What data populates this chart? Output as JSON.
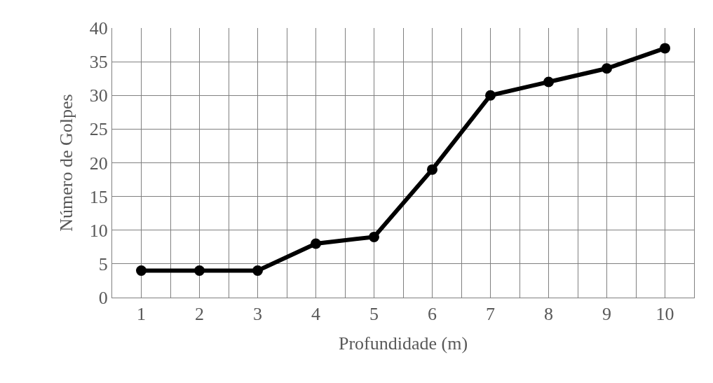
{
  "chart_data": {
    "type": "line",
    "xlabel": "Profundidade (m)",
    "ylabel": "Número de Golpes",
    "x": [
      1,
      2,
      3,
      4,
      5,
      6,
      7,
      8,
      9,
      10
    ],
    "series": [
      {
        "color": "#000000",
        "values": [
          4,
          4,
          4,
          8,
          9,
          19,
          30,
          32,
          34,
          37
        ]
      }
    ],
    "xlim": [
      0.5,
      10.5
    ],
    "xticks": [
      {
        "value": 0.5,
        "label": null
      },
      1,
      {
        "value": 1.5,
        "label": null
      },
      2,
      {
        "value": 2.5,
        "label": null
      },
      3,
      {
        "value": 3.5,
        "label": null
      },
      4,
      {
        "value": 4.5,
        "label": null
      },
      5,
      {
        "value": 5.5,
        "label": null
      },
      6,
      {
        "value": 6.5,
        "label": null
      },
      7,
      {
        "value": 7.5,
        "label": null
      },
      8,
      {
        "value": 8.5,
        "label": null
      },
      9,
      {
        "value": 9.5,
        "label": null
      },
      10,
      {
        "value": 10.5,
        "label": null
      }
    ],
    "ylim": [
      0,
      40
    ],
    "yticks": [
      0,
      5,
      10,
      15,
      20,
      25,
      30,
      35,
      40
    ],
    "grid": true,
    "marker": "circle",
    "line_style": "solid",
    "legend": false
  }
}
